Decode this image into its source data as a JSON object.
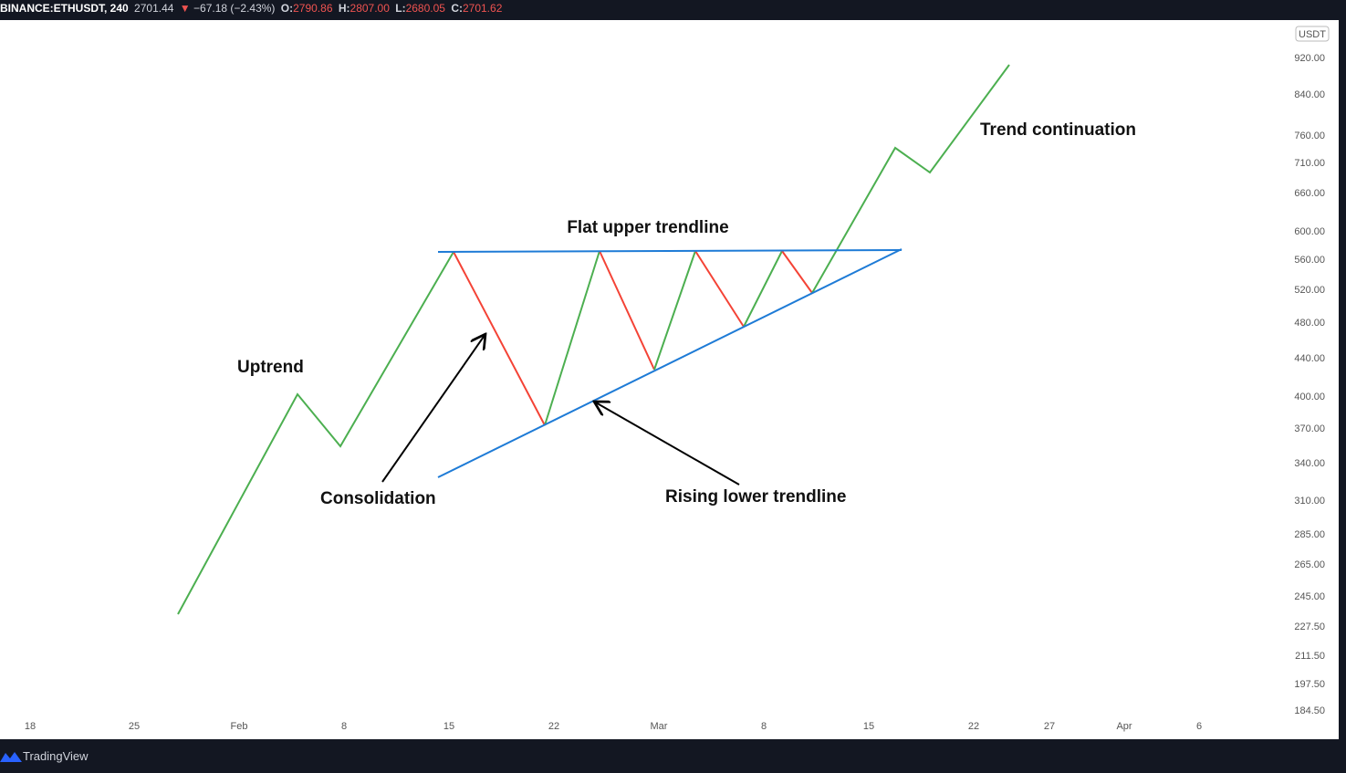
{
  "header": {
    "symbol": "BINANCE:ETHUSDT, 240",
    "last": "2701.44",
    "change": "−67.18 (−2.43%)",
    "open_label": "O:",
    "open": "2790.86",
    "high_label": "H:",
    "high": "2807.00",
    "low_label": "L:",
    "low": "2680.05",
    "close_label": "C:",
    "close": "2701.62"
  },
  "price_axis": {
    "currency": "USDT",
    "labels": [
      "920.00",
      "840.00",
      "760.00",
      "710.00",
      "660.00",
      "600.00",
      "560.00",
      "520.00",
      "480.00",
      "440.00",
      "400.00",
      "370.00",
      "340.00",
      "310.00",
      "285.00",
      "265.00",
      "245.00",
      "227.50",
      "211.50",
      "197.50",
      "184.50"
    ]
  },
  "time_axis": {
    "labels": [
      "18",
      "25",
      "Feb",
      "8",
      "15",
      "22",
      "Mar",
      "8",
      "15",
      "22",
      "27",
      "Apr",
      "6"
    ]
  },
  "annotations": {
    "uptrend": "Uptrend",
    "flat": "Flat upper trendline",
    "consolidation": "Consolidation",
    "rising": "Rising lower trendline",
    "continuation": "Trend continuation"
  },
  "footer": {
    "brand": "TradingView"
  }
}
